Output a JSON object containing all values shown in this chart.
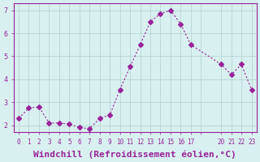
{
  "x": [
    0,
    1,
    2,
    3,
    4,
    5,
    6,
    7,
    8,
    9,
    10,
    11,
    12,
    13,
    14,
    15,
    16,
    17,
    20,
    21,
    22,
    23
  ],
  "y": [
    2.3,
    2.75,
    2.8,
    2.1,
    2.1,
    2.05,
    1.9,
    1.85,
    2.3,
    2.45,
    3.55,
    4.55,
    5.5,
    6.5,
    6.85,
    7.0,
    6.4,
    5.5,
    4.65,
    4.2,
    4.65,
    3.55
  ],
  "line_color": "#992299",
  "marker": "D",
  "marker_size": 3,
  "bg_color": "#d8f0f0",
  "grid_color": "#b0d0d0",
  "axis_color": "#992299",
  "tick_label_color": "#992299",
  "xlabel": "Windchill (Refroidissement éolien,°C)",
  "xlabel_fontsize": 8,
  "ytick_labels": [
    "2",
    "3",
    "4",
    "5",
    "6",
    "7"
  ],
  "ytick_values": [
    2,
    3,
    4,
    5,
    6,
    7
  ],
  "xtick_labels": [
    "0",
    "1",
    "2",
    "3",
    "4",
    "5",
    "6",
    "7",
    "8",
    "9",
    "10",
    "11",
    "12",
    "13",
    "14",
    "15",
    "16",
    "17",
    "",
    "20",
    "21",
    "22",
    "23"
  ],
  "xtick_values": [
    0,
    1,
    2,
    3,
    4,
    5,
    6,
    7,
    8,
    9,
    10,
    11,
    12,
    13,
    14,
    15,
    16,
    17,
    18,
    20,
    21,
    22,
    23
  ],
  "ylim": [
    1.7,
    7.3
  ],
  "xlim": [
    -0.5,
    23.5
  ]
}
